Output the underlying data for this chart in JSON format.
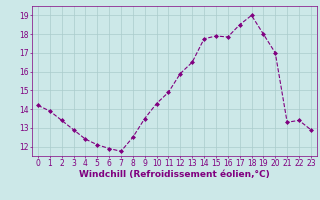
{
  "x": [
    0,
    1,
    2,
    3,
    4,
    5,
    6,
    7,
    8,
    9,
    10,
    11,
    12,
    13,
    14,
    15,
    16,
    17,
    18,
    19,
    20,
    21,
    22,
    23
  ],
  "y": [
    14.2,
    13.9,
    13.4,
    12.9,
    12.4,
    12.1,
    11.9,
    11.75,
    12.5,
    13.5,
    14.3,
    14.9,
    15.9,
    16.5,
    17.75,
    17.9,
    17.85,
    18.5,
    19.0,
    18.0,
    17.0,
    13.3,
    13.4,
    12.9
  ],
  "line_color": "#800080",
  "marker": "D",
  "marker_size": 2.0,
  "bg_color": "#cce8e8",
  "grid_color": "#aacccc",
  "xlabel": "Windchill (Refroidissement éolien,°C)",
  "ylabel": "",
  "xlim": [
    -0.5,
    23.5
  ],
  "ylim": [
    11.5,
    19.5
  ],
  "yticks": [
    12,
    13,
    14,
    15,
    16,
    17,
    18,
    19
  ],
  "xticks": [
    0,
    1,
    2,
    3,
    4,
    5,
    6,
    7,
    8,
    9,
    10,
    11,
    12,
    13,
    14,
    15,
    16,
    17,
    18,
    19,
    20,
    21,
    22,
    23
  ],
  "tick_label_fontsize": 5.5,
  "xlabel_fontsize": 6.5,
  "axis_label_color": "#800080",
  "tick_color": "#800080",
  "linewidth": 0.8
}
